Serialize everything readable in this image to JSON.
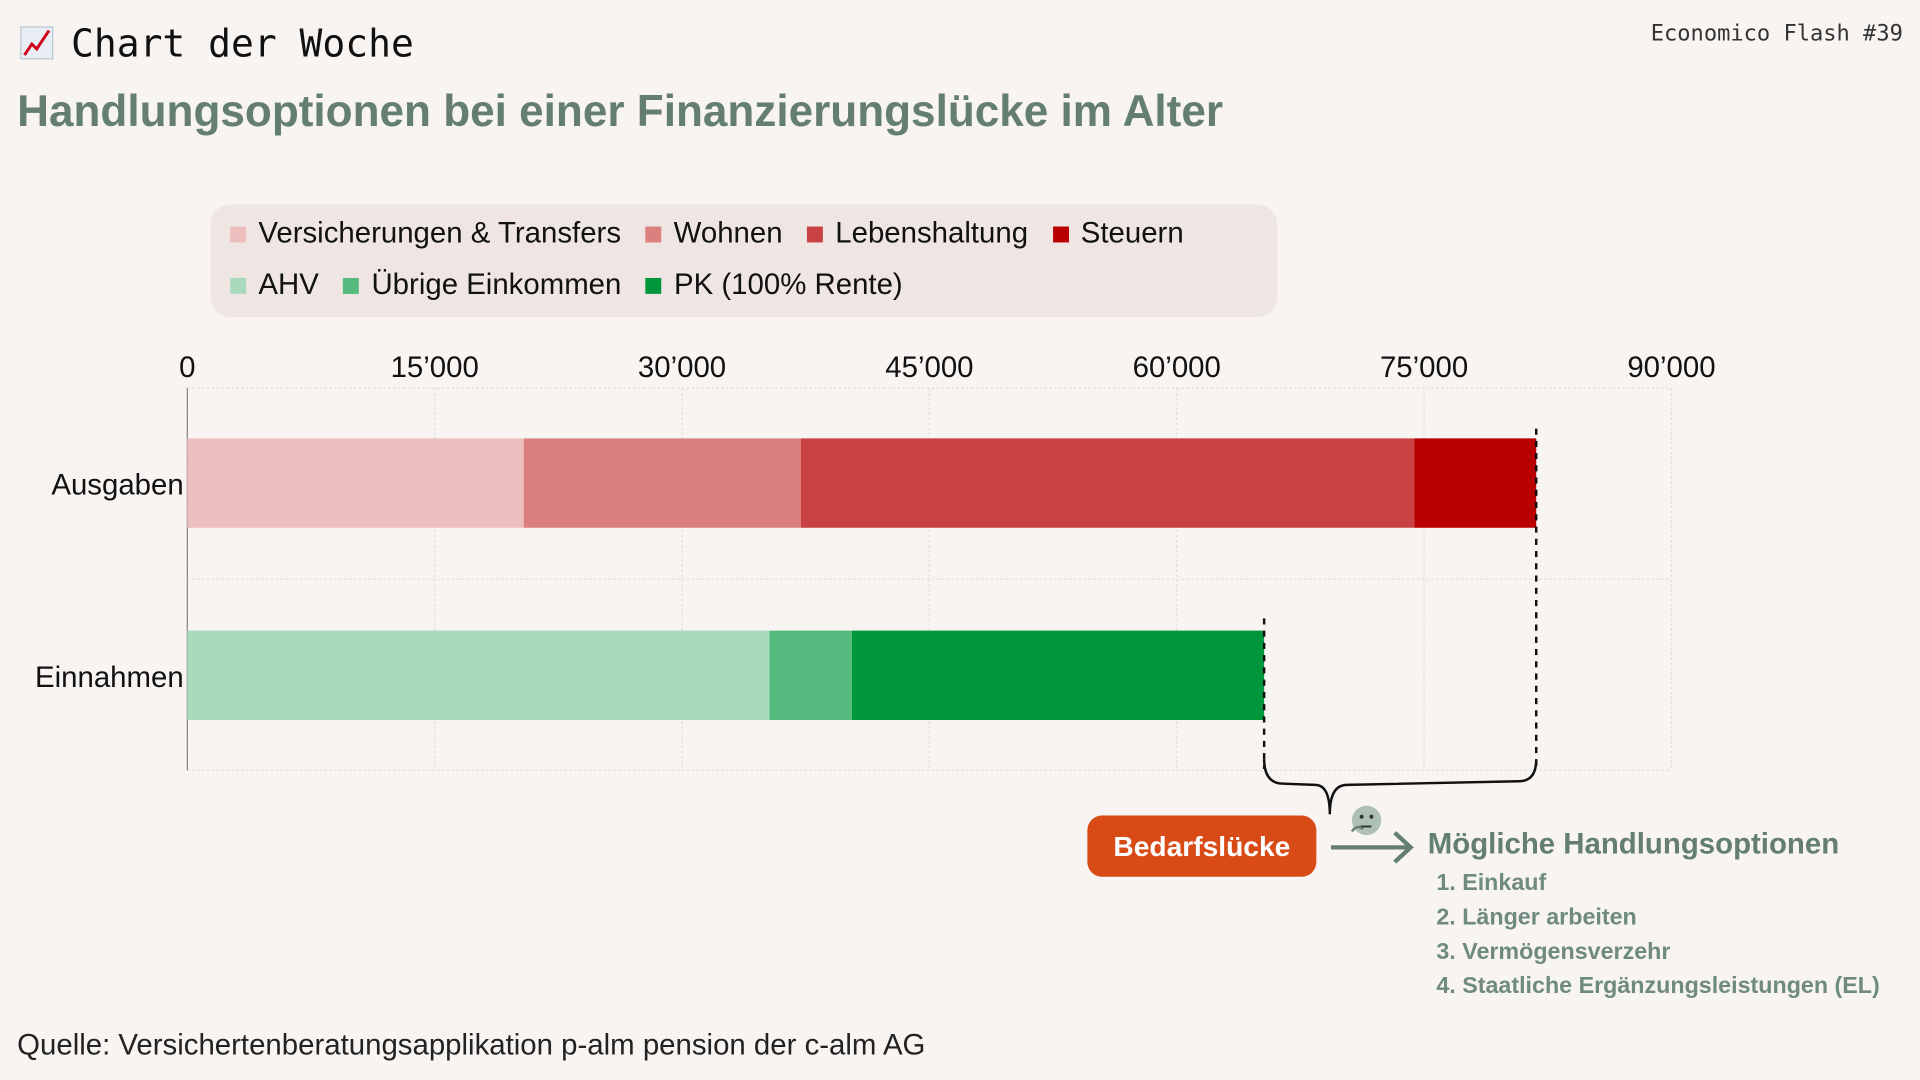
{
  "header": {
    "kicker": "Chart der Woche",
    "kicker_icon": "chart-increasing-icon",
    "issue": "Economico Flash #39",
    "title": "Handlungsoptionen bei einer Finanzierungslücke im Alter"
  },
  "annotation": {
    "gap_label": "Bedarfslücke",
    "gap_icon": "thinking-face-icon",
    "options_title": "Mögliche Handlungsoptionen",
    "options": [
      "1. Einkauf",
      "2. Länger arbeiten",
      "3. Vermögensverzehr",
      "4. Staatliche Ergänzungsleistungen (EL)"
    ]
  },
  "footer": {
    "source": "Quelle: Versichertenberatungsapplikation p-alm pension der c-alm AG"
  },
  "chart_data": {
    "type": "bar",
    "orientation": "horizontal",
    "stacked": true,
    "categories": [
      "Ausgaben",
      "Einnahmen"
    ],
    "xlim": [
      0,
      90000
    ],
    "xticks": [
      0,
      15000,
      30000,
      45000,
      60000,
      75000,
      90000
    ],
    "xtick_labels": [
      "0",
      "15’000",
      "30’000",
      "45’000",
      "60’000",
      "75’000",
      "90’000"
    ],
    "grid": true,
    "legend_placement": "top",
    "series": [
      {
        "name": "Versicherungen & Transfers",
        "category": "Ausgaben",
        "value": 20400,
        "color": "#ecbebe"
      },
      {
        "name": "Wohnen",
        "category": "Ausgaben",
        "value": 16800,
        "color": "#db7f7f"
      },
      {
        "name": "Lebenshaltung",
        "category": "Ausgaben",
        "value": 37200,
        "color": "#c84243"
      },
      {
        "name": "Steuern",
        "category": "Ausgaben",
        "value": 7400,
        "color": "#b80000"
      },
      {
        "name": "AHV",
        "category": "Einnahmen",
        "value": 35300,
        "color": "#a8dabb"
      },
      {
        "name": "Übrige Einkommen",
        "category": "Einnahmen",
        "value": 5000,
        "color": "#55ba7e"
      },
      {
        "name": "PK (100% Rente)",
        "category": "Einnahmen",
        "value": 25000,
        "color": "#00963b"
      }
    ]
  }
}
